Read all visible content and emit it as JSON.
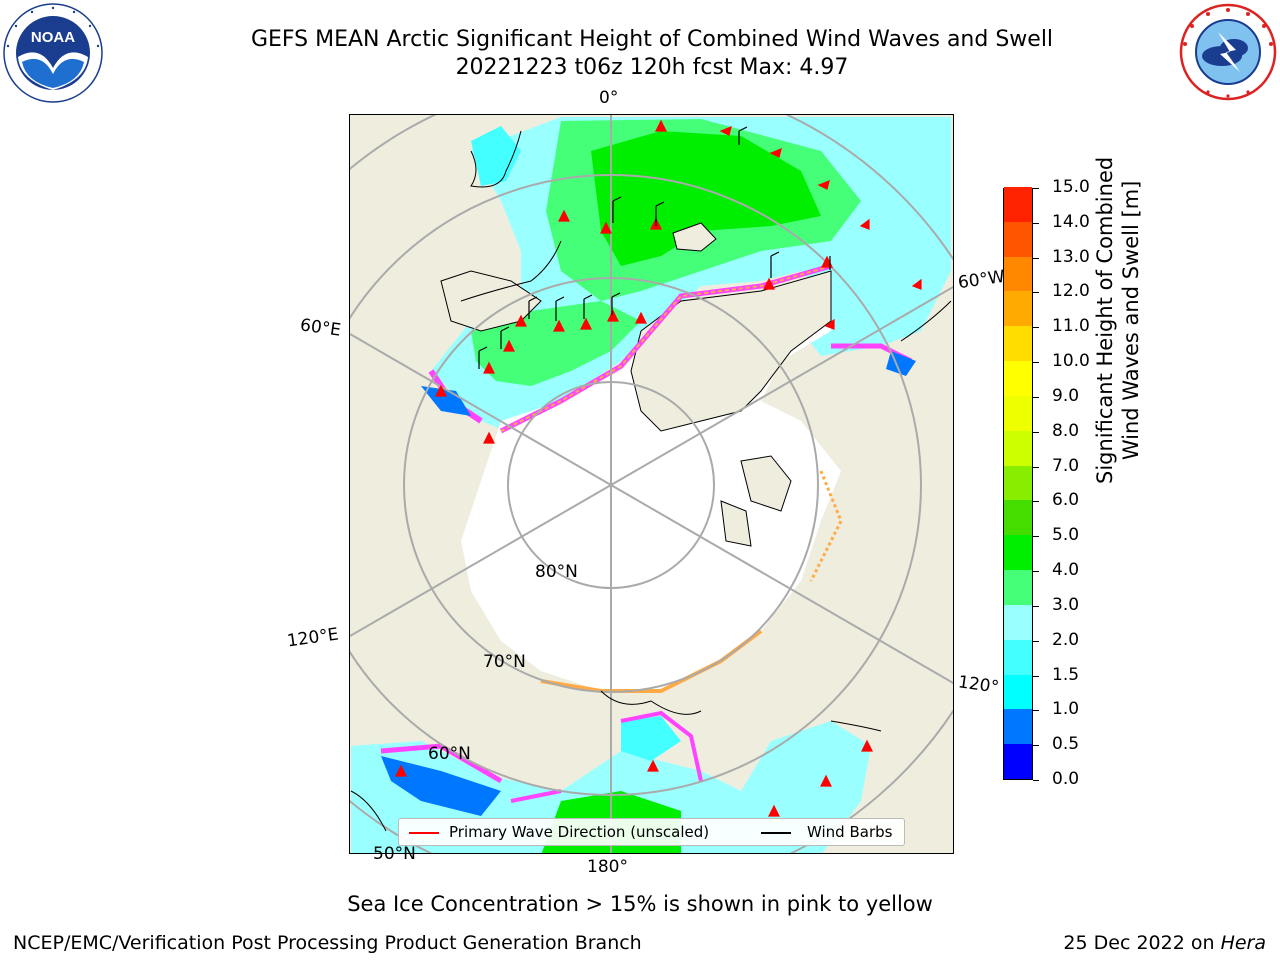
{
  "header": {
    "title_line1": "GEFS MEAN Arctic Significant Height of Combined Wind Waves and Swell",
    "title_line2": "20221223 t06z 120h fcst   Max: 4.97"
  },
  "logos": {
    "noaa_text": "NOAA",
    "noaa_ring_text": "NATIONAL OCEANIC AND ATMOSPHERIC ADMINISTRATION · U.S. DEPARTMENT OF COMMERCE",
    "nws_ring_text": "NATIONAL WEATHER SERVICE"
  },
  "map": {
    "longitude_labels": {
      "top": "0°",
      "left_upper": "60°E",
      "left_lower": "120°E",
      "right_upper": "60°W",
      "right_lower": "120°",
      "bottom": "180°"
    },
    "latitude_labels": {
      "lat80": "80°N",
      "lat70": "70°N",
      "lat60": "60°N",
      "lat50": "50°N"
    },
    "colors": {
      "land": "#efedde",
      "ice_pink": "#ff44ff",
      "ice_orange": "#ffaa44",
      "ice_yellow": "#ffdd33",
      "wave_arrow": "#ff0000"
    }
  },
  "legend": {
    "wave_direction": "Primary Wave Direction (unscaled)",
    "wind_barbs": "Wind Barbs"
  },
  "colorbar": {
    "label_line1": "Significant Height of Combined",
    "label_line2": "Wind Waves and Swell [m]",
    "ticks": [
      "0.0",
      "0.5",
      "1.0",
      "1.5",
      "2.0",
      "3.0",
      "4.0",
      "5.0",
      "6.0",
      "7.0",
      "8.0",
      "9.0",
      "10.0",
      "11.0",
      "12.0",
      "13.0",
      "14.0",
      "15.0"
    ],
    "colors": [
      "#0000ff",
      "#0077ff",
      "#00ffff",
      "#44ffff",
      "#99ffff",
      "#44ff77",
      "#00ee00",
      "#44dd00",
      "#88ee00",
      "#ccff00",
      "#eeff00",
      "#ffff00",
      "#ffdd00",
      "#ffaa00",
      "#ff8800",
      "#ff5500",
      "#ff2200"
    ]
  },
  "footer": {
    "ice_note": "Sea Ice Concentration > 15% is shown in pink to yellow",
    "producer": "NCEP/EMC/Verification Post Processing Product Generation Branch",
    "date_text": "25 Dec 2022 on",
    "machine": "Hera"
  }
}
